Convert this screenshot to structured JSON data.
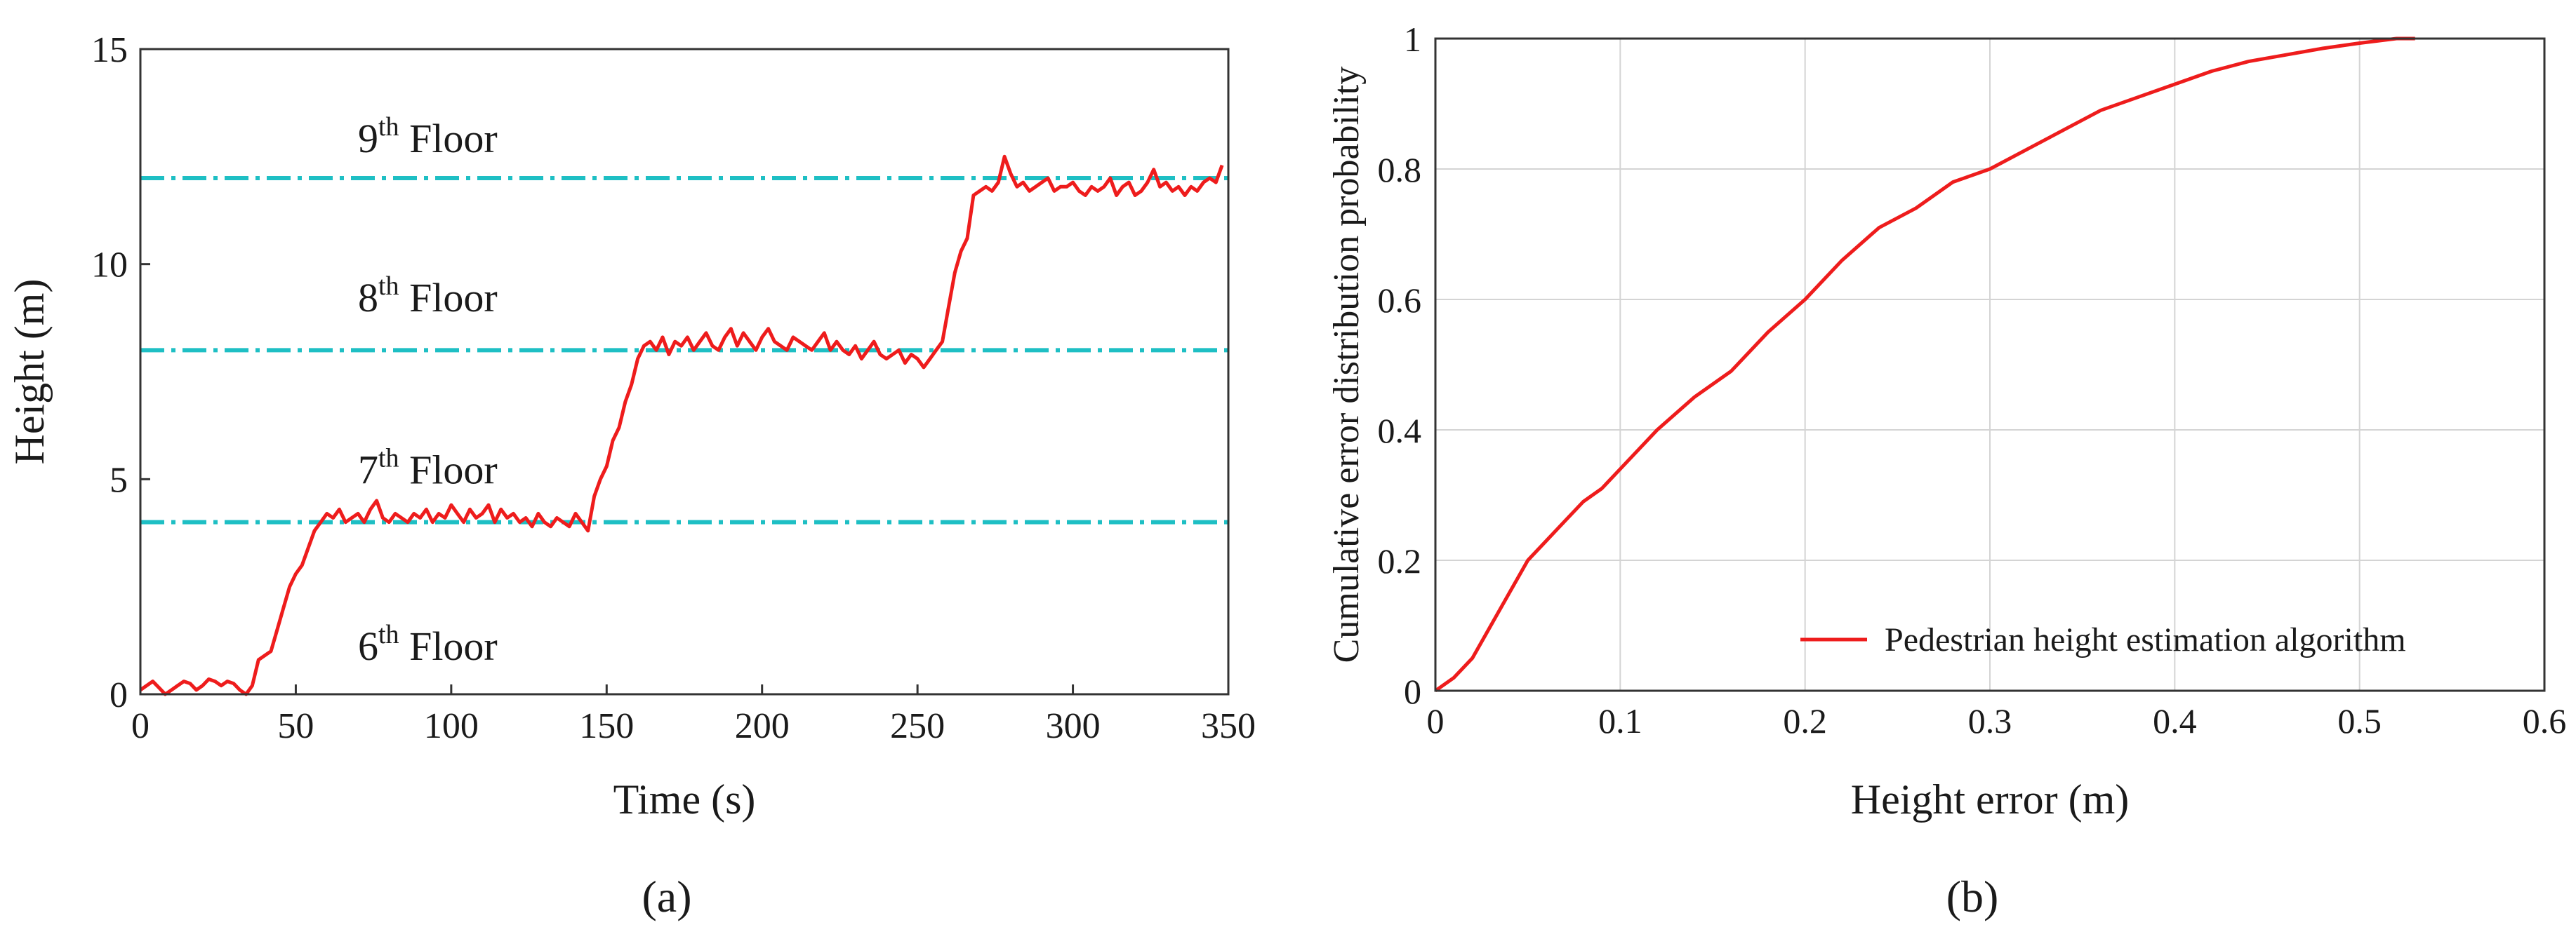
{
  "colors": {
    "series": "#ee1c1c",
    "floor_lines": "#1ebfc4",
    "grid": "#d4d4d4",
    "axes": "#333333"
  },
  "chart_data": [
    {
      "type": "line",
      "panel_label": "(a)",
      "xlabel": "Time (s)",
      "ylabel": "Height (m)",
      "xlim": [
        0,
        350
      ],
      "ylim": [
        0,
        15
      ],
      "xticks": [
        "0",
        "50",
        "100",
        "150",
        "200",
        "250",
        "300",
        "350"
      ],
      "yticks": [
        "0",
        "5",
        "10",
        "15"
      ],
      "grid": false,
      "annotations": [
        {
          "base": "9",
          "sup": "th",
          "rest": " Floor",
          "x": 70,
          "y": 12.6
        },
        {
          "base": "8",
          "sup": "th",
          "rest": " Floor",
          "x": 70,
          "y": 8.9
        },
        {
          "base": "7",
          "sup": "th",
          "rest": " Floor",
          "x": 70,
          "y": 4.9
        },
        {
          "base": "6",
          "sup": "th",
          "rest": " Floor",
          "x": 70,
          "y": 0.8
        }
      ],
      "reference_lines": [
        {
          "y": 12,
          "style": "dash-dot"
        },
        {
          "y": 8,
          "style": "dash-dot"
        },
        {
          "y": 4,
          "style": "dash-dot"
        }
      ],
      "series": [
        {
          "x": [
            0,
            2,
            4,
            6,
            8,
            10,
            12,
            14,
            16,
            18,
            20,
            22,
            24,
            26,
            28,
            30,
            32,
            34,
            36,
            38,
            40,
            42,
            44,
            46,
            48,
            50,
            52,
            54,
            56,
            58,
            60,
            62,
            64,
            66,
            68,
            70,
            72,
            74,
            76,
            78,
            80,
            82,
            84,
            86,
            88,
            90,
            92,
            94,
            96,
            98,
            100,
            102,
            104,
            106,
            108,
            110,
            112,
            114,
            116,
            118,
            120,
            122,
            124,
            126,
            128,
            130,
            132,
            134,
            136,
            138,
            140,
            142,
            144,
            146,
            148,
            150,
            152,
            154,
            156,
            158,
            160,
            162,
            164,
            166,
            168,
            170,
            172,
            174,
            176,
            178,
            180,
            182,
            184,
            186,
            188,
            190,
            192,
            194,
            196,
            198,
            200,
            202,
            204,
            206,
            208,
            210,
            212,
            214,
            216,
            218,
            220,
            222,
            224,
            226,
            228,
            230,
            232,
            234,
            236,
            238,
            240,
            242,
            244,
            246,
            248,
            250,
            252,
            254,
            256,
            258,
            260,
            262,
            264,
            266,
            268,
            270,
            272,
            274,
            276,
            278,
            280,
            282,
            284,
            286,
            288,
            290,
            292,
            294,
            296,
            298,
            300,
            302,
            304,
            306,
            308,
            310,
            312,
            314,
            316,
            318,
            320,
            322,
            324,
            326,
            328,
            330,
            332,
            334,
            336,
            338,
            340,
            342,
            344,
            346,
            348
          ],
          "y": [
            0.1,
            0.2,
            0.3,
            0.15,
            0.0,
            0.1,
            0.2,
            0.3,
            0.25,
            0.1,
            0.2,
            0.35,
            0.3,
            0.2,
            0.3,
            0.25,
            0.1,
            0.0,
            0.2,
            0.8,
            0.9,
            1.0,
            1.5,
            2.0,
            2.5,
            2.8,
            3.0,
            3.4,
            3.8,
            4.0,
            4.2,
            4.1,
            4.3,
            4.0,
            4.1,
            4.2,
            4.0,
            4.3,
            4.5,
            4.1,
            4.0,
            4.2,
            4.1,
            4.0,
            4.2,
            4.1,
            4.3,
            4.0,
            4.2,
            4.1,
            4.4,
            4.2,
            4.0,
            4.3,
            4.1,
            4.2,
            4.4,
            4.0,
            4.3,
            4.1,
            4.2,
            4.0,
            4.1,
            3.9,
            4.2,
            4.0,
            3.9,
            4.1,
            4.0,
            3.9,
            4.2,
            4.0,
            3.8,
            4.6,
            5.0,
            5.3,
            5.9,
            6.2,
            6.8,
            7.2,
            7.8,
            8.1,
            8.2,
            8.0,
            8.3,
            7.9,
            8.2,
            8.1,
            8.3,
            8.0,
            8.2,
            8.4,
            8.1,
            8.0,
            8.3,
            8.5,
            8.1,
            8.4,
            8.2,
            8.0,
            8.3,
            8.5,
            8.2,
            8.1,
            8.0,
            8.3,
            8.2,
            8.1,
            8.0,
            8.2,
            8.4,
            8.0,
            8.2,
            8.0,
            7.9,
            8.1,
            7.8,
            8.0,
            8.2,
            7.9,
            7.8,
            7.9,
            8.0,
            7.7,
            7.9,
            7.8,
            7.6,
            7.8,
            8.0,
            8.2,
            9.0,
            9.8,
            10.3,
            10.6,
            11.6,
            11.7,
            11.8,
            11.7,
            11.9,
            12.5,
            12.1,
            11.8,
            11.9,
            11.7,
            11.8,
            11.9,
            12.0,
            11.7,
            11.8,
            11.8,
            11.9,
            11.7,
            11.6,
            11.8,
            11.7,
            11.8,
            12.0,
            11.6,
            11.8,
            11.9,
            11.6,
            11.7,
            11.9,
            12.2,
            11.8,
            11.9,
            11.7,
            11.8,
            11.6,
            11.8,
            11.7,
            11.9,
            12.0,
            11.9,
            12.3
          ]
        }
      ]
    },
    {
      "type": "line",
      "panel_label": "(b)",
      "xlabel": "Height error (m)",
      "ylabel": "Cumulative error distribution probability",
      "xlim": [
        0,
        0.6
      ],
      "ylim": [
        0,
        1
      ],
      "xticks": [
        "0",
        "0.1",
        "0.2",
        "0.3",
        "0.4",
        "0.5",
        "0.6"
      ],
      "yticks": [
        "0",
        "0.2",
        "0.4",
        "0.6",
        "0.8",
        "1"
      ],
      "grid": true,
      "legend": {
        "placement": "bottom-right"
      },
      "series": [
        {
          "name": "Pedestrian height estimation algorithm",
          "x": [
            0.0,
            0.005,
            0.01,
            0.02,
            0.03,
            0.04,
            0.05,
            0.06,
            0.07,
            0.08,
            0.09,
            0.1,
            0.12,
            0.14,
            0.16,
            0.18,
            0.2,
            0.22,
            0.24,
            0.26,
            0.28,
            0.3,
            0.32,
            0.34,
            0.36,
            0.38,
            0.4,
            0.42,
            0.44,
            0.46,
            0.48,
            0.5,
            0.52,
            0.53
          ],
          "y": [
            0.0,
            0.01,
            0.02,
            0.05,
            0.1,
            0.15,
            0.2,
            0.23,
            0.26,
            0.29,
            0.31,
            0.34,
            0.4,
            0.45,
            0.49,
            0.55,
            0.6,
            0.66,
            0.71,
            0.74,
            0.78,
            0.8,
            0.83,
            0.86,
            0.89,
            0.91,
            0.93,
            0.95,
            0.965,
            0.975,
            0.985,
            0.993,
            1.0,
            1.0
          ]
        }
      ]
    }
  ]
}
